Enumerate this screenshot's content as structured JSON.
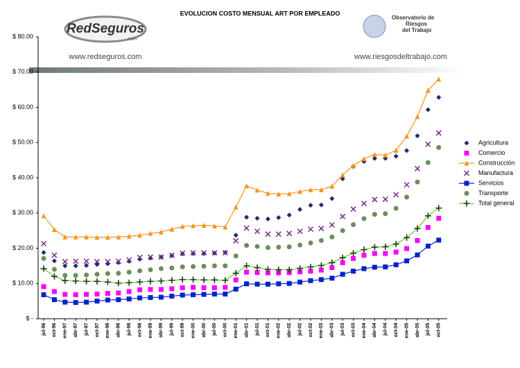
{
  "chart_data": {
    "type": "line",
    "title": "EVOLUCION COSTO MENSUAL ART POR EMPLEADO",
    "annotations": [
      "RedSeguros",
      ".com",
      "www.redseguros.com",
      "Observatorio de",
      "Riesgos",
      "del Trabajo",
      "www.riesgosdeltrabajo.com"
    ],
    "categories": [
      "jul-96",
      "oct-96",
      "ene-97",
      "abr-97",
      "jul-97",
      "oct-97",
      "ene-98",
      "abr-98",
      "jul-98",
      "oct-98",
      "ene-99",
      "abr-99",
      "jul-99",
      "oct-99",
      "ene-00",
      "abr-00",
      "jul-00",
      "oct-00",
      "ene-01",
      "abr-01",
      "jul-01",
      "oct-01",
      "ene-02",
      "abr-02",
      "jul-02",
      "oct-02",
      "ene-03",
      "abr-03",
      "jul-03",
      "oct-03",
      "ene-04",
      "abr-04",
      "jul-04",
      "oct-04",
      "ene-05",
      "abr-05",
      "jul-05",
      "oct-05"
    ],
    "series": [
      {
        "name": "Agricultura",
        "color": "#1f2a6b",
        "marker": "diamond",
        "line": false,
        "values": [
          18.8,
          16.4,
          15.0,
          15.0,
          15.1,
          15.4,
          15.6,
          15.9,
          16.3,
          16.9,
          17.2,
          17.5,
          17.9,
          18.4,
          18.5,
          18.5,
          18.6,
          18.8,
          23.7,
          28.8,
          28.5,
          28.3,
          28.7,
          29.4,
          31.0,
          32.2,
          32.3,
          34.1,
          39.7,
          43.2,
          44.6,
          45.5,
          45.5,
          46.1,
          47.7,
          51.9,
          59.3,
          62.8
        ]
      },
      {
        "name": "Comercio",
        "color": "#ff00ff",
        "marker": "square",
        "line": false,
        "values": [
          9.1,
          7.7,
          6.9,
          6.8,
          6.9,
          7.0,
          7.2,
          7.3,
          7.7,
          8.2,
          8.3,
          8.3,
          8.5,
          8.8,
          8.9,
          8.8,
          8.8,
          8.9,
          11.0,
          13.2,
          13.1,
          13.0,
          13.0,
          13.1,
          13.3,
          13.5,
          13.8,
          14.5,
          15.9,
          17.1,
          18.0,
          18.5,
          18.5,
          18.9,
          19.9,
          22.2,
          25.9,
          28.5
        ]
      },
      {
        "name": "Construcción",
        "color": "#f7941d",
        "marker": "triangle",
        "line": true,
        "values": [
          29.2,
          25.3,
          23.2,
          23.2,
          23.2,
          23.1,
          23.1,
          23.2,
          23.4,
          23.7,
          24.2,
          24.6,
          25.4,
          26.2,
          26.4,
          26.5,
          26.3,
          26.0,
          31.7,
          37.7,
          36.5,
          35.6,
          35.4,
          35.5,
          36.1,
          36.6,
          36.6,
          37.6,
          40.8,
          43.5,
          45.4,
          46.6,
          46.4,
          47.8,
          51.8,
          57.4,
          64.8,
          68
        ]
      },
      {
        "name": "Manufactura",
        "color": "#7b2a8b",
        "marker": "cross",
        "line": false,
        "values": [
          21.3,
          18.0,
          16.2,
          16.3,
          16.3,
          16.2,
          16.2,
          16.3,
          16.7,
          17.4,
          17.5,
          17.5,
          18.0,
          18.6,
          18.7,
          18.7,
          18.7,
          18.7,
          22.1,
          25.7,
          24.8,
          24.0,
          24.0,
          24.2,
          24.8,
          25.4,
          25.6,
          26.6,
          29.0,
          31.1,
          32.7,
          33.8,
          33.9,
          35.2,
          38.0,
          42.6,
          49.5,
          52.7
        ]
      },
      {
        "name": "Servicios",
        "color": "#0022cc",
        "marker": "square",
        "line": true,
        "values": [
          6.8,
          5.4,
          4.7,
          4.6,
          4.7,
          5.0,
          5.3,
          5.4,
          5.6,
          5.9,
          6.0,
          6.1,
          6.4,
          6.7,
          6.8,
          6.9,
          7.0,
          7.0,
          8.4,
          9.9,
          9.8,
          9.8,
          9.9,
          10.0,
          10.4,
          10.8,
          11.1,
          11.5,
          12.6,
          13.5,
          14.2,
          14.6,
          14.7,
          15.3,
          16.4,
          18.1,
          20.6,
          22.3
        ]
      },
      {
        "name": "Transporte",
        "color": "#6b8e5a",
        "marker": "circle",
        "line": false,
        "values": [
          17.1,
          14.0,
          12.3,
          12.3,
          12.4,
          12.6,
          12.8,
          12.9,
          13.2,
          13.6,
          13.9,
          14.2,
          14.4,
          14.7,
          14.8,
          14.9,
          15.0,
          15.0,
          17.8,
          20.8,
          20.5,
          20.2,
          20.3,
          20.4,
          20.9,
          21.5,
          22.2,
          23.2,
          25.0,
          26.7,
          28.4,
          29.6,
          29.8,
          31.3,
          34.5,
          38.8,
          44.3,
          48.6
        ]
      },
      {
        "name": "Total general",
        "color": "#66cc33",
        "marker": "plus",
        "line": true,
        "values": [
          14.2,
          12.0,
          10.8,
          10.7,
          10.6,
          10.6,
          10.4,
          10.1,
          10.2,
          10.4,
          10.6,
          10.7,
          10.9,
          11.1,
          11.1,
          11.0,
          11.0,
          10.9,
          12.9,
          15.0,
          14.5,
          14.0,
          13.9,
          13.9,
          14.3,
          14.7,
          15.1,
          15.9,
          17.3,
          18.6,
          19.6,
          20.3,
          20.4,
          21.2,
          23.0,
          25.6,
          29.2,
          31.4
        ]
      }
    ],
    "ylim": [
      0,
      80
    ],
    "yticks": [
      {
        "value": 0,
        "label": "$ -"
      },
      {
        "value": 10,
        "label": "$ 10.00"
      },
      {
        "value": 20,
        "label": "$ 20.00"
      },
      {
        "value": 30,
        "label": "$ 30.00"
      },
      {
        "value": 40,
        "label": "$ 40.00"
      },
      {
        "value": 50,
        "label": "$ 50.00"
      },
      {
        "value": 60,
        "label": "$ 60.00"
      },
      {
        "value": 70,
        "label": "$ 70.00"
      },
      {
        "value": 80,
        "label": "$ 80.00"
      }
    ],
    "grid": false,
    "legend": "right"
  }
}
